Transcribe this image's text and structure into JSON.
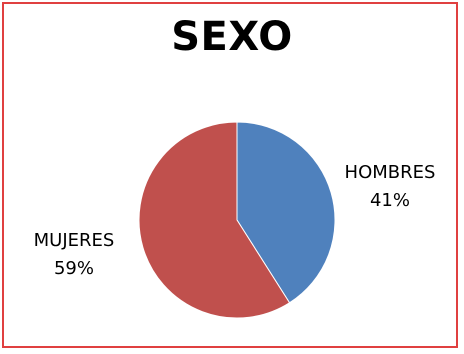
{
  "chart_data": {
    "type": "pie",
    "title": "SEXO",
    "slices": [
      {
        "label": "HOMBRES",
        "value": 41,
        "value_label": "41%",
        "color": "#4F81BD"
      },
      {
        "label": "MUJERES",
        "value": 59,
        "value_label": "59%",
        "color": "#C0504D"
      }
    ],
    "legend": "none",
    "border_color": "#e04040"
  }
}
